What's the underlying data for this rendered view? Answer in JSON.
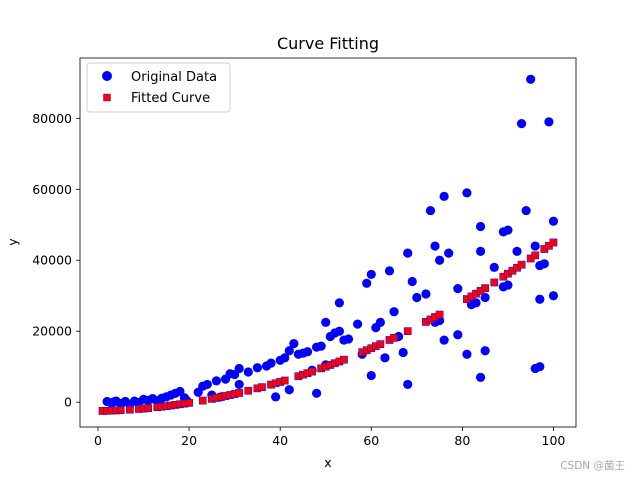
{
  "chart_data": {
    "type": "scatter",
    "title": "Curve Fitting",
    "xlabel": "x",
    "ylabel": "y",
    "xlim": [
      -3.95,
      104.95
    ],
    "ylim": [
      -7000,
      97000
    ],
    "xticks": [
      0,
      20,
      40,
      60,
      80,
      100
    ],
    "xtick_labels": [
      "0",
      "20",
      "40",
      "60",
      "80",
      "100"
    ],
    "yticks": [
      0,
      20000,
      40000,
      60000,
      80000
    ],
    "ytick_labels": [
      "0",
      "20000",
      "40000",
      "60000",
      "80000"
    ],
    "grid": false,
    "legend_position": "top-left",
    "fit_coefficients": {
      "a": 4.5,
      "b": 25,
      "c": -2500
    },
    "series": [
      {
        "name": "Original Data",
        "marker": "circle",
        "color": "#0000ff",
        "points": [
          [
            2,
            200
          ],
          [
            3,
            -300
          ],
          [
            3.5,
            100
          ],
          [
            4,
            300
          ],
          [
            5,
            -400
          ],
          [
            6,
            200
          ],
          [
            7,
            -700
          ],
          [
            8,
            300
          ],
          [
            9,
            -100
          ],
          [
            10,
            800
          ],
          [
            11,
            500
          ],
          [
            12,
            1000
          ],
          [
            13,
            400
          ],
          [
            14,
            1100
          ],
          [
            15,
            1500
          ],
          [
            16,
            2000
          ],
          [
            17,
            2500
          ],
          [
            18,
            3000
          ],
          [
            19,
            1200
          ],
          [
            19.5,
            400
          ],
          [
            22,
            2800
          ],
          [
            23,
            4500
          ],
          [
            24,
            5000
          ],
          [
            25,
            2000
          ],
          [
            26,
            6000
          ],
          [
            27,
            1500
          ],
          [
            28,
            6500
          ],
          [
            29,
            8000
          ],
          [
            30,
            7800
          ],
          [
            31,
            5000
          ],
          [
            31,
            9500
          ],
          [
            33,
            8500
          ],
          [
            35,
            9700
          ],
          [
            37,
            10200
          ],
          [
            38,
            11000
          ],
          [
            39,
            1500
          ],
          [
            40,
            11800
          ],
          [
            41,
            12500
          ],
          [
            42,
            3500
          ],
          [
            42,
            14500
          ],
          [
            43,
            16500
          ],
          [
            44,
            13500
          ],
          [
            45,
            13800
          ],
          [
            46,
            14200
          ],
          [
            47,
            9000
          ],
          [
            48,
            15500
          ],
          [
            48,
            2500
          ],
          [
            49,
            15800
          ],
          [
            50,
            10500
          ],
          [
            50,
            22500
          ],
          [
            51,
            18500
          ],
          [
            52,
            19500
          ],
          [
            53,
            20000
          ],
          [
            53,
            28000
          ],
          [
            54,
            17500
          ],
          [
            55,
            17800
          ],
          [
            57,
            22000
          ],
          [
            58,
            13500
          ],
          [
            59,
            33500
          ],
          [
            60,
            7500
          ],
          [
            60,
            36000
          ],
          [
            61,
            21000
          ],
          [
            62,
            22500
          ],
          [
            63,
            12500
          ],
          [
            64,
            37000
          ],
          [
            65,
            25500
          ],
          [
            66,
            18500
          ],
          [
            67,
            14000
          ],
          [
            68,
            5000
          ],
          [
            68,
            42000
          ],
          [
            69,
            34000
          ],
          [
            70,
            29500
          ],
          [
            72,
            30500
          ],
          [
            73,
            54000
          ],
          [
            74,
            44000
          ],
          [
            74,
            22500
          ],
          [
            75,
            40000
          ],
          [
            75,
            23000
          ],
          [
            76,
            58000
          ],
          [
            76,
            17500
          ],
          [
            77,
            42000
          ],
          [
            79,
            19000
          ],
          [
            79,
            32000
          ],
          [
            81,
            59000
          ],
          [
            81,
            13500
          ],
          [
            82,
            27500
          ],
          [
            83,
            28000
          ],
          [
            84,
            7000
          ],
          [
            84,
            42500
          ],
          [
            84,
            49500
          ],
          [
            85,
            14500
          ],
          [
            85,
            29500
          ],
          [
            87,
            38000
          ],
          [
            89,
            32500
          ],
          [
            89,
            48000
          ],
          [
            90,
            33000
          ],
          [
            90,
            48500
          ],
          [
            92,
            42500
          ],
          [
            93,
            78500
          ],
          [
            94,
            54000
          ],
          [
            95,
            91000
          ],
          [
            96,
            9500
          ],
          [
            96,
            44000
          ],
          [
            97,
            10000
          ],
          [
            97,
            29000
          ],
          [
            97,
            38500
          ],
          [
            98,
            39000
          ],
          [
            99,
            79000
          ],
          [
            100,
            30000
          ],
          [
            100,
            51000
          ]
        ]
      },
      {
        "name": "Fitted Curve",
        "marker": "square",
        "color": "#ff0000",
        "edgecolor": "#0000ff",
        "x": [
          1,
          2,
          3,
          4,
          5,
          7,
          9,
          10,
          11,
          13,
          14,
          15,
          16,
          17,
          18,
          19,
          20,
          23,
          25,
          26,
          27,
          28,
          29,
          30,
          31,
          33,
          35,
          36,
          38,
          39,
          40,
          41,
          44,
          45,
          46,
          47,
          49,
          50,
          51,
          52,
          53,
          54,
          58,
          59,
          60,
          61,
          62,
          64,
          65,
          68,
          72,
          73,
          74,
          75,
          81,
          82,
          83,
          84,
          85,
          87,
          89,
          90,
          91,
          92,
          93,
          95,
          96,
          98,
          99,
          100
        ]
      }
    ],
    "watermark": "CSDN @菌王"
  }
}
